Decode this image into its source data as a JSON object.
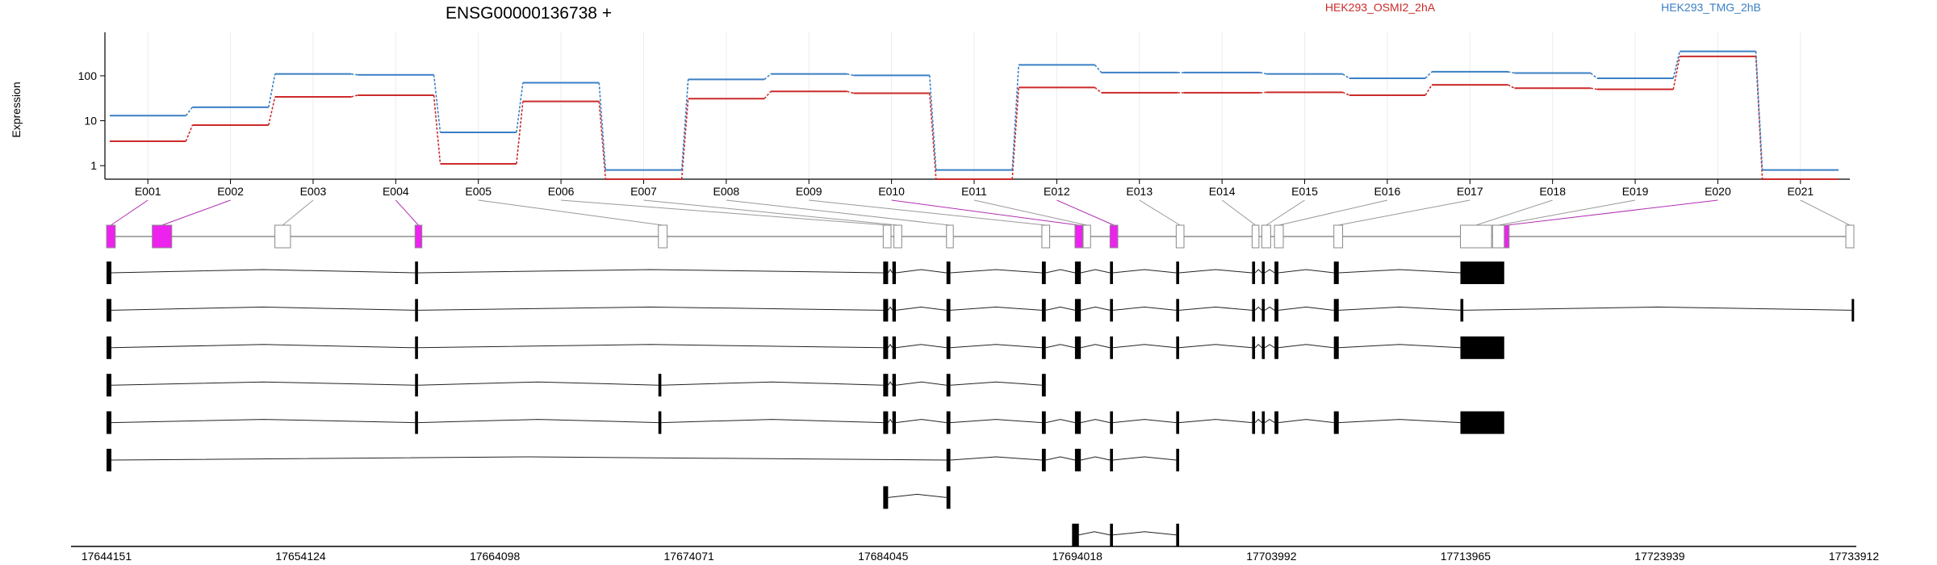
{
  "chart_data": {
    "type": "line",
    "title": "ENSG00000136738 +",
    "ylabel": "Expression",
    "yscale": "log",
    "yticks": [
      1,
      10,
      100
    ],
    "ylim": [
      0.5,
      500
    ],
    "grid": "vertical, light",
    "legend": "top-right",
    "colors": {
      "series_a": "#cc2a2a",
      "series_b": "#3a7fc4",
      "highlight": "#ee22ee"
    },
    "categories": [
      "E001",
      "E002",
      "E003",
      "E004",
      "E005",
      "E006",
      "E007",
      "E008",
      "E009",
      "E010",
      "E011",
      "E012",
      "E013",
      "E014",
      "E015",
      "E016",
      "E017",
      "E018",
      "E019",
      "E020",
      "E021"
    ],
    "series": [
      {
        "name": "HEK293_OSMI2_2hA",
        "values": [
          3.5,
          8,
          34,
          37,
          1.1,
          27,
          0.5,
          31,
          45,
          41,
          0.5,
          55,
          42,
          42,
          43,
          37,
          63,
          53,
          50,
          270,
          0.5
        ]
      },
      {
        "name": "HEK293_TMG_2hB",
        "values": [
          13,
          20,
          110,
          105,
          5.5,
          70,
          0.8,
          83,
          110,
          102,
          0.8,
          175,
          118,
          118,
          110,
          88,
          123,
          115,
          88,
          350,
          0.8
        ]
      }
    ],
    "exon_span": [
      [
        17644151,
        17644600
      ],
      [
        17646500,
        17647500
      ],
      [
        17652800,
        17653600
      ],
      [
        17660000,
        17660350
      ],
      [
        17672500,
        17672950
      ],
      [
        17684050,
        17684450
      ],
      [
        17684600,
        17685000
      ],
      [
        17687300,
        17687650
      ],
      [
        17692200,
        17692600
      ],
      [
        17693900,
        17694300
      ],
      [
        17694320,
        17694700
      ],
      [
        17695700,
        17696100
      ],
      [
        17699100,
        17699500
      ],
      [
        17703000,
        17703350
      ],
      [
        17703500,
        17703950
      ],
      [
        17704150,
        17704600
      ],
      [
        17707200,
        17707650
      ],
      [
        17713700,
        17715300
      ],
      [
        17715350,
        17715950
      ],
      [
        17715960,
        17716200
      ],
      [
        17733500,
        17733912
      ]
    ],
    "highlight_exons": [
      "E001",
      "E002",
      "E004",
      "E010",
      "E012",
      "E020"
    ],
    "genomic_axis": {
      "range": [
        17644151,
        17733912
      ],
      "ticks": [
        "17644151",
        "17654124",
        "17664098",
        "17674071",
        "17684045",
        "17694018",
        "17703992",
        "17713965",
        "17723939",
        "17733912"
      ]
    },
    "transcripts": [
      [
        [
          17644151,
          17644400
        ],
        [
          17660000,
          17660150
        ],
        [
          17684050,
          17684300
        ],
        [
          17684520,
          17684700
        ],
        [
          17687300,
          17687500
        ],
        [
          17692200,
          17692400
        ],
        [
          17693900,
          17694200
        ],
        [
          17695700,
          17695850
        ],
        [
          17699100,
          17699250
        ],
        [
          17703000,
          17703150
        ],
        [
          17703500,
          17703650
        ],
        [
          17704150,
          17704350
        ],
        [
          17707200,
          17707450
        ],
        [
          17713700,
          17715950
        ]
      ],
      [
        [
          17644151,
          17644400
        ],
        [
          17660000,
          17660150
        ],
        [
          17684050,
          17684300
        ],
        [
          17684520,
          17684700
        ],
        [
          17687300,
          17687500
        ],
        [
          17692200,
          17692400
        ],
        [
          17693900,
          17694200
        ],
        [
          17695700,
          17695850
        ],
        [
          17699100,
          17699250
        ],
        [
          17703000,
          17703150
        ],
        [
          17703500,
          17703650
        ],
        [
          17704150,
          17704350
        ],
        [
          17707200,
          17707450
        ],
        [
          17713700,
          17713850
        ],
        [
          17733800,
          17733912
        ]
      ],
      [
        [
          17644151,
          17644400
        ],
        [
          17660000,
          17660150
        ],
        [
          17684050,
          17684300
        ],
        [
          17684520,
          17684700
        ],
        [
          17687300,
          17687500
        ],
        [
          17692200,
          17692400
        ],
        [
          17693900,
          17694200
        ],
        [
          17695700,
          17695850
        ],
        [
          17699100,
          17699250
        ],
        [
          17703000,
          17703150
        ],
        [
          17703500,
          17703650
        ],
        [
          17704150,
          17704350
        ],
        [
          17707200,
          17707450
        ],
        [
          17713700,
          17715950
        ]
      ],
      [
        [
          17644151,
          17644400
        ],
        [
          17660000,
          17660150
        ],
        [
          17672500,
          17672650
        ],
        [
          17684050,
          17684300
        ],
        [
          17684520,
          17684700
        ],
        [
          17687300,
          17687500
        ],
        [
          17692200,
          17692400
        ]
      ],
      [
        [
          17644151,
          17644400
        ],
        [
          17660000,
          17660150
        ],
        [
          17672500,
          17672650
        ],
        [
          17684050,
          17684300
        ],
        [
          17684520,
          17684700
        ],
        [
          17687300,
          17687500
        ],
        [
          17692200,
          17692400
        ],
        [
          17693900,
          17694200
        ],
        [
          17695700,
          17695850
        ],
        [
          17699100,
          17699250
        ],
        [
          17703000,
          17703150
        ],
        [
          17703500,
          17703650
        ],
        [
          17704150,
          17704350
        ],
        [
          17707200,
          17707450
        ],
        [
          17713700,
          17715950
        ]
      ],
      [
        [
          17644151,
          17644400
        ],
        [
          17687300,
          17687500
        ],
        [
          17692200,
          17692400
        ],
        [
          17693900,
          17694200
        ],
        [
          17695700,
          17695850
        ],
        [
          17699100,
          17699250
        ]
      ],
      [
        [
          17684050,
          17684300
        ],
        [
          17687300,
          17687500
        ]
      ],
      [
        [
          17693750,
          17694100
        ],
        [
          17695700,
          17695850
        ],
        [
          17699100,
          17699250
        ]
      ]
    ]
  }
}
